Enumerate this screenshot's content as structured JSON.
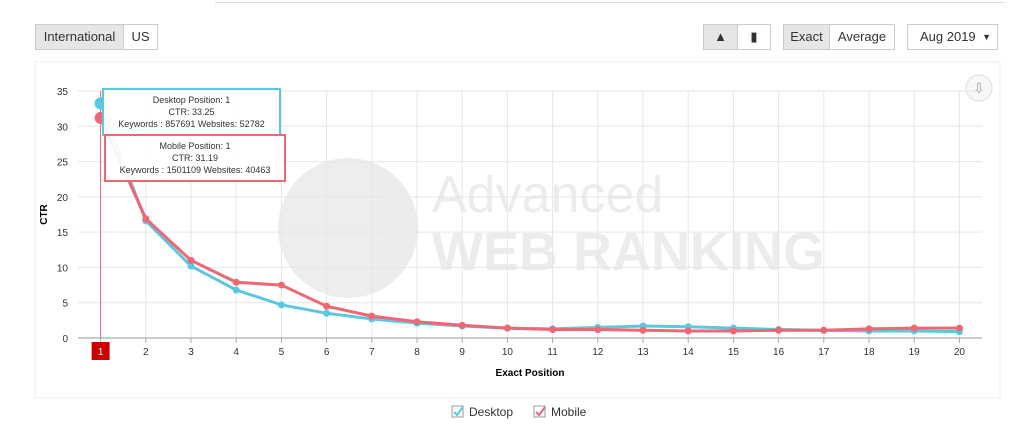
{
  "controls": {
    "regions": [
      "International",
      "US"
    ],
    "modes": [
      "Exact",
      "Average"
    ],
    "month": "Aug 2019"
  },
  "watermark": {
    "line1": "Advanced",
    "line2": "WEB RANKING"
  },
  "tooltips": [
    {
      "title": "Desktop Position: 1",
      "ctr": "CTR: 33.25",
      "stats": "Keywords : 857691 Websites: 52782"
    },
    {
      "title": "Mobile Position: 1",
      "ctr": "CTR: 31.19",
      "stats": "Keywords : 1501109 Websites: 40463"
    }
  ],
  "chart_data": {
    "type": "line",
    "y_label": "CTR",
    "x_label": "Exact Position",
    "x": [
      1,
      2,
      3,
      4,
      5,
      6,
      7,
      8,
      9,
      10,
      11,
      12,
      13,
      14,
      15,
      16,
      17,
      18,
      19,
      20
    ],
    "series": [
      {
        "name": "Desktop",
        "color": "#5bc8e2",
        "values": [
          33.25,
          16.6,
          10.2,
          6.8,
          4.7,
          3.5,
          2.7,
          2.1,
          1.7,
          1.4,
          1.3,
          1.5,
          1.7,
          1.6,
          1.4,
          1.2,
          1.1,
          1.0,
          1.0,
          0.9
        ]
      },
      {
        "name": "Mobile",
        "color": "#ef6674",
        "values": [
          31.19,
          16.9,
          11.0,
          7.9,
          7.5,
          4.5,
          3.1,
          2.3,
          1.8,
          1.4,
          1.2,
          1.2,
          1.1,
          1.0,
          1.0,
          1.1,
          1.1,
          1.3,
          1.4,
          1.4
        ]
      }
    ],
    "xlim": [
      0.5,
      20.5
    ],
    "xticks": [
      1,
      2,
      3,
      4,
      5,
      6,
      7,
      8,
      9,
      10,
      11,
      12,
      13,
      14,
      15,
      16,
      17,
      18,
      19,
      20
    ],
    "ylim": [
      0,
      35
    ],
    "yticks": [
      0,
      5,
      10,
      15,
      20,
      25,
      30,
      35
    ],
    "grid": true,
    "legend": "bottom"
  }
}
